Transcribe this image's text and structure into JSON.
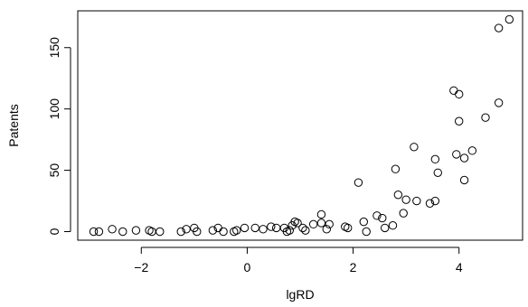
{
  "chart_data": {
    "type": "scatter",
    "title": "",
    "xlabel": "lgRD",
    "ylabel": "Patents",
    "xlim": [
      -3.2,
      5.2
    ],
    "ylim": [
      -7,
      180
    ],
    "xticks": [
      -2,
      0,
      2,
      4
    ],
    "yticks": [
      0,
      50,
      100,
      150
    ],
    "xtick_labels": [
      "−2",
      "0",
      "2",
      "4"
    ],
    "ytick_labels": [
      "0",
      "50",
      "100",
      "150"
    ],
    "grid": false,
    "points": [
      {
        "x": -2.9,
        "y": 0
      },
      {
        "x": -2.8,
        "y": 0
      },
      {
        "x": -2.55,
        "y": 2
      },
      {
        "x": -2.35,
        "y": 0
      },
      {
        "x": -2.1,
        "y": 1
      },
      {
        "x": -1.85,
        "y": 1
      },
      {
        "x": -1.8,
        "y": 0
      },
      {
        "x": -1.65,
        "y": 0
      },
      {
        "x": -1.25,
        "y": 0
      },
      {
        "x": -1.15,
        "y": 2
      },
      {
        "x": -1.0,
        "y": 3
      },
      {
        "x": -0.95,
        "y": 0
      },
      {
        "x": -0.65,
        "y": 1
      },
      {
        "x": -0.55,
        "y": 3
      },
      {
        "x": -0.45,
        "y": 0
      },
      {
        "x": -0.25,
        "y": 0
      },
      {
        "x": -0.2,
        "y": 1
      },
      {
        "x": -0.05,
        "y": 3
      },
      {
        "x": 0.15,
        "y": 3
      },
      {
        "x": 0.3,
        "y": 2
      },
      {
        "x": 0.45,
        "y": 4
      },
      {
        "x": 0.55,
        "y": 3
      },
      {
        "x": 0.7,
        "y": 3
      },
      {
        "x": 0.75,
        "y": 0
      },
      {
        "x": 0.8,
        "y": 1
      },
      {
        "x": 0.85,
        "y": 5
      },
      {
        "x": 0.9,
        "y": 8
      },
      {
        "x": 0.95,
        "y": 7
      },
      {
        "x": 1.05,
        "y": 3
      },
      {
        "x": 1.1,
        "y": 1
      },
      {
        "x": 1.25,
        "y": 6
      },
      {
        "x": 1.4,
        "y": 7
      },
      {
        "x": 1.4,
        "y": 14
      },
      {
        "x": 1.5,
        "y": 2
      },
      {
        "x": 1.55,
        "y": 6
      },
      {
        "x": 1.85,
        "y": 4
      },
      {
        "x": 1.9,
        "y": 3
      },
      {
        "x": 2.1,
        "y": 40
      },
      {
        "x": 2.2,
        "y": 8
      },
      {
        "x": 2.25,
        "y": 0
      },
      {
        "x": 2.45,
        "y": 13
      },
      {
        "x": 2.55,
        "y": 11
      },
      {
        "x": 2.6,
        "y": 3
      },
      {
        "x": 2.75,
        "y": 5
      },
      {
        "x": 2.8,
        "y": 51
      },
      {
        "x": 2.85,
        "y": 30
      },
      {
        "x": 2.95,
        "y": 15
      },
      {
        "x": 3.0,
        "y": 26
      },
      {
        "x": 3.15,
        "y": 69
      },
      {
        "x": 3.2,
        "y": 25
      },
      {
        "x": 3.45,
        "y": 23
      },
      {
        "x": 3.55,
        "y": 59
      },
      {
        "x": 3.55,
        "y": 25
      },
      {
        "x": 3.6,
        "y": 48
      },
      {
        "x": 3.9,
        "y": 115
      },
      {
        "x": 3.95,
        "y": 63
      },
      {
        "x": 4.0,
        "y": 112
      },
      {
        "x": 4.0,
        "y": 90
      },
      {
        "x": 4.1,
        "y": 60
      },
      {
        "x": 4.1,
        "y": 42
      },
      {
        "x": 4.25,
        "y": 66
      },
      {
        "x": 4.5,
        "y": 93
      },
      {
        "x": 4.75,
        "y": 105
      },
      {
        "x": 4.75,
        "y": 166
      },
      {
        "x": 4.95,
        "y": 173
      }
    ]
  }
}
